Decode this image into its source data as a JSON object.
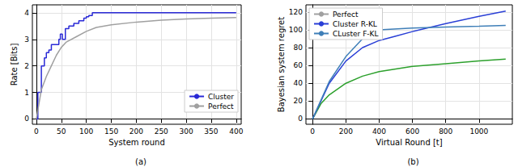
{
  "chart_data": [
    {
      "type": "line",
      "title": "(a)",
      "x_label": "System round",
      "y_label": "Rate [Bits]",
      "xlim": [
        -8,
        410
      ],
      "xticks": [
        0,
        50,
        100,
        150,
        200,
        250,
        300,
        350,
        400
      ],
      "ylim": [
        -0.2,
        4.3
      ],
      "yticks": [
        0,
        1,
        2,
        3,
        4
      ],
      "grid": true,
      "legend": "lower right",
      "series": [
        {
          "name": "Cluster",
          "type": "step",
          "color": "#2a2ad6",
          "x": [
            0,
            3,
            10,
            16,
            20,
            25,
            30,
            45,
            48,
            52,
            58,
            65,
            75,
            85,
            95,
            100,
            105,
            112,
            400
          ],
          "values": [
            0,
            1,
            2,
            2.3,
            2.5,
            2.6,
            2.8,
            3,
            3.2,
            3,
            3.4,
            3.5,
            3.6,
            3.7,
            3.8,
            3.85,
            3.9,
            4,
            4
          ]
        },
        {
          "name": "Perfect",
          "type": "line",
          "color": "#a0a0a0",
          "x": [
            0,
            10,
            20,
            30,
            40,
            50,
            60,
            80,
            100,
            120,
            150,
            200,
            250,
            300,
            350,
            400
          ],
          "values": [
            0,
            1.1,
            1.6,
            2.0,
            2.4,
            2.7,
            2.9,
            3.1,
            3.3,
            3.45,
            3.55,
            3.65,
            3.72,
            3.77,
            3.8,
            3.82
          ]
        }
      ]
    },
    {
      "type": "line",
      "title": "(b)",
      "x_label": "Virtual Round [t]",
      "y_label": "Bayesian system regret",
      "xlim": [
        -40,
        1200
      ],
      "xticks": [
        0,
        200,
        400,
        600,
        800,
        1000
      ],
      "ylim": [
        -6,
        128
      ],
      "yticks": [
        0,
        20,
        40,
        60,
        80,
        100,
        120
      ],
      "grid": true,
      "legend": "upper left",
      "series": [
        {
          "name": "Perfect",
          "type": "line",
          "color": "#2ca02c",
          "x": [
            0,
            50,
            100,
            200,
            300,
            400,
            600,
            800,
            1000,
            1160
          ],
          "values": [
            0,
            17,
            27,
            40,
            48,
            53,
            59,
            62,
            65,
            67
          ]
        },
        {
          "name": "Cluster R-KL",
          "type": "line",
          "color": "#2a3fd6",
          "x": [
            0,
            100,
            200,
            300,
            400,
            500,
            600,
            800,
            1000,
            1160
          ],
          "values": [
            0,
            40,
            65,
            80,
            88,
            93,
            98,
            107,
            115,
            121
          ]
        },
        {
          "name": "CLuster F-KL",
          "type": "line",
          "color": "#3f7fb8",
          "x": [
            0,
            100,
            200,
            300,
            350,
            400,
            600,
            800,
            1000,
            1160
          ],
          "values": [
            0,
            42,
            70,
            90,
            97,
            100,
            102,
            103,
            104,
            105
          ]
        }
      ]
    }
  ]
}
